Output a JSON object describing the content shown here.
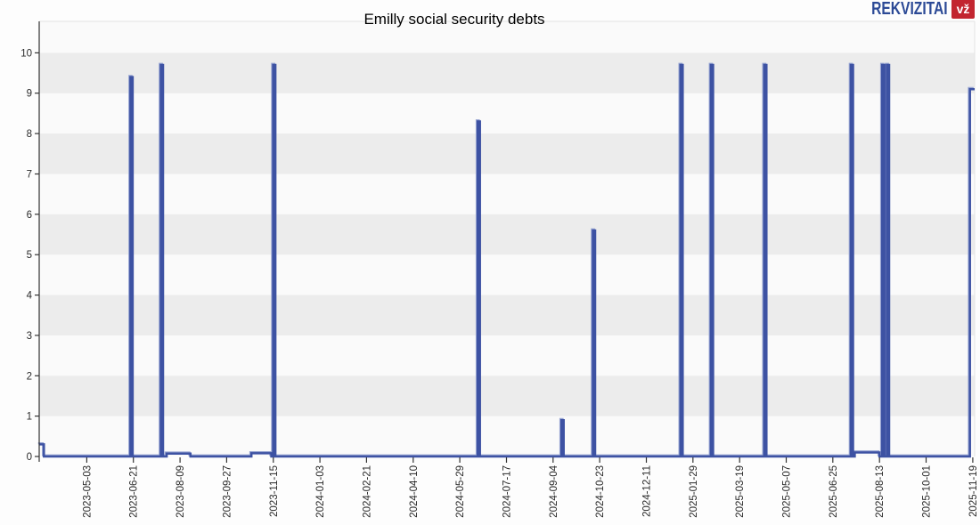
{
  "page": {
    "background": "#fdfdfd"
  },
  "logo": {
    "brand": "REKVIZITAI",
    "badge": "vž",
    "brand_color": "#2c4a96",
    "badge_bg": "#c2252f",
    "badge_text_color": "#ffffff"
  },
  "chart_data": {
    "type": "line",
    "title": "Emilly social security debts",
    "series_name": "Emilly social security debts",
    "xlabel": "",
    "ylabel": "",
    "ylim": [
      0,
      10.78
    ],
    "y_ticks": [
      0,
      1,
      2,
      3,
      4,
      5,
      6,
      7,
      8,
      9,
      10
    ],
    "grid": "alternating-horizontal-bands",
    "legend": "none",
    "x_axis": {
      "start_date": "2023-03-14",
      "end_date": "2025-11-21",
      "tick_interval_days": 49,
      "tick_dates": [
        "2023-05-03",
        "2023-06-21",
        "2023-08-09",
        "2023-09-27",
        "2023-11-15",
        "2024-01-03",
        "2024-02-21",
        "2024-04-10",
        "2024-05-29",
        "2024-07-17",
        "2024-09-04",
        "2024-10-23",
        "2024-12-11",
        "2025-01-29",
        "2025-03-19",
        "2025-05-07",
        "2025-06-25",
        "2025-08-13",
        "2025-10-01",
        "2025-11-19"
      ]
    },
    "colors": {
      "line": "#3d52a3",
      "line_highlight": "#98a5d2",
      "band_gray": "#ececec",
      "band_light": "#fafafa",
      "axis": "#333333",
      "tick_label": "#2b2b2b",
      "plot_border": "#e3e3e3"
    },
    "segments": [
      {
        "kind": "level",
        "from": "2023-03-14",
        "to": "2023-03-19",
        "value": 0.3
      },
      {
        "kind": "spike",
        "date": "2023-06-19",
        "value": 9.4
      },
      {
        "kind": "spike",
        "date": "2023-07-21",
        "value": 9.7
      },
      {
        "kind": "level",
        "from": "2023-07-26",
        "to": "2023-08-20",
        "value": 0.07
      },
      {
        "kind": "level",
        "from": "2023-10-23",
        "to": "2023-11-13",
        "value": 0.08
      },
      {
        "kind": "spike",
        "date": "2023-11-16",
        "value": 9.7
      },
      {
        "kind": "spike",
        "date": "2024-06-18",
        "value": 8.3
      },
      {
        "kind": "spike",
        "date": "2024-09-14",
        "value": 0.9
      },
      {
        "kind": "spike",
        "date": "2024-10-17",
        "value": 5.6
      },
      {
        "kind": "spike",
        "date": "2025-01-17",
        "value": 9.7
      },
      {
        "kind": "spike",
        "date": "2025-02-18",
        "value": 9.7
      },
      {
        "kind": "spike",
        "date": "2025-04-15",
        "value": 9.7
      },
      {
        "kind": "spike",
        "date": "2025-07-15",
        "value": 9.7
      },
      {
        "kind": "level",
        "from": "2025-07-18",
        "to": "2025-08-13",
        "value": 0.1
      },
      {
        "kind": "spike",
        "date": "2025-08-17",
        "value": 9.7
      },
      {
        "kind": "spike",
        "date": "2025-08-22",
        "value": 9.7
      },
      {
        "kind": "level",
        "from": "2025-11-16",
        "to": "2025-11-21",
        "value": 9.1
      }
    ]
  }
}
